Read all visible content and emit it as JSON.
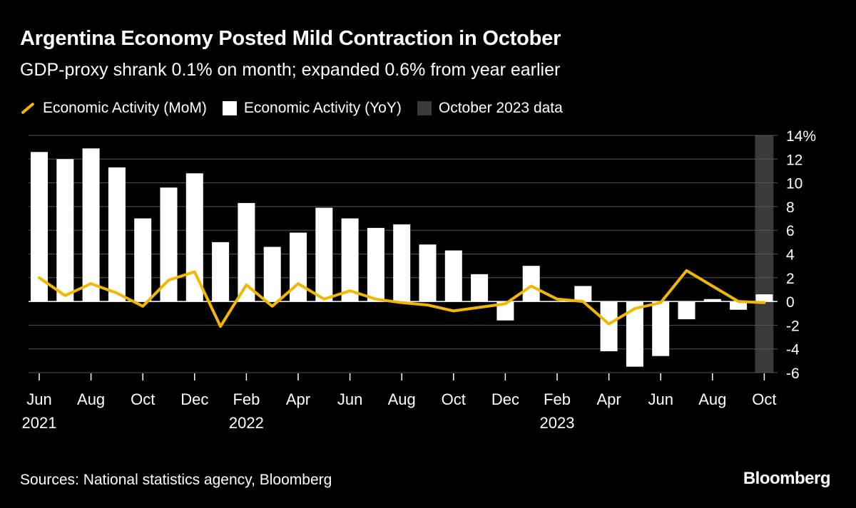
{
  "header": {
    "title": "Argentina Economy Posted Mild Contraction in October",
    "subtitle": "GDP-proxy shrank 0.1% on month; expanded 0.6% from year earlier"
  },
  "legend": {
    "mom_label": "Economic Activity (MoM)",
    "yoy_label": "Economic Activity (YoY)",
    "highlight_label": "October 2023 data"
  },
  "footer": {
    "source": "Sources: National statistics agency, Bloomberg",
    "brand": "Bloomberg"
  },
  "colors": {
    "background": "#000000",
    "mom_line": "#f2b705",
    "yoy_bar": "#ffffff",
    "highlight": "#3a3a3a",
    "grid": "#555555"
  },
  "chart_data": {
    "type": "bar",
    "title": "Argentina Economy Posted Mild Contraction in October",
    "subtitle": "GDP-proxy shrank 0.1% on month; expanded 0.6% from year earlier",
    "ylim": [
      -6,
      14
    ],
    "y_ticks": [
      -6,
      -4,
      -2,
      0,
      2,
      4,
      6,
      8,
      10,
      12,
      14
    ],
    "y_tick_labels": [
      "-6",
      "-4",
      "-2",
      "0",
      "2",
      "4",
      "6",
      "8",
      "10",
      "12",
      "14%"
    ],
    "grid": true,
    "legend_position": "top-left",
    "highlight_period": "2023-10",
    "x": [
      "2021-06",
      "2021-07",
      "2021-08",
      "2021-09",
      "2021-10",
      "2021-11",
      "2021-12",
      "2022-01",
      "2022-02",
      "2022-03",
      "2022-04",
      "2022-05",
      "2022-06",
      "2022-07",
      "2022-08",
      "2022-09",
      "2022-10",
      "2022-11",
      "2022-12",
      "2023-01",
      "2023-02",
      "2023-03",
      "2023-04",
      "2023-05",
      "2023-06",
      "2023-07",
      "2023-08",
      "2023-09",
      "2023-10"
    ],
    "x_tick_labels": [
      {
        "index": 0,
        "month": "Jun",
        "year": "2021"
      },
      {
        "index": 2,
        "month": "Aug",
        "year": ""
      },
      {
        "index": 4,
        "month": "Oct",
        "year": ""
      },
      {
        "index": 6,
        "month": "Dec",
        "year": ""
      },
      {
        "index": 8,
        "month": "Feb",
        "year": "2022"
      },
      {
        "index": 10,
        "month": "Apr",
        "year": ""
      },
      {
        "index": 12,
        "month": "Jun",
        "year": ""
      },
      {
        "index": 14,
        "month": "Aug",
        "year": ""
      },
      {
        "index": 16,
        "month": "Oct",
        "year": ""
      },
      {
        "index": 18,
        "month": "Dec",
        "year": ""
      },
      {
        "index": 20,
        "month": "Feb",
        "year": "2023"
      },
      {
        "index": 22,
        "month": "Apr",
        "year": ""
      },
      {
        "index": 24,
        "month": "Jun",
        "year": ""
      },
      {
        "index": 26,
        "month": "Aug",
        "year": ""
      },
      {
        "index": 28,
        "month": "Oct",
        "year": ""
      }
    ],
    "series": [
      {
        "name": "Economic Activity (YoY)",
        "type": "bar",
        "values": [
          12.6,
          12.0,
          12.9,
          11.3,
          7.0,
          9.6,
          10.8,
          5.0,
          8.3,
          4.6,
          5.8,
          7.9,
          7.0,
          6.2,
          6.5,
          4.8,
          4.3,
          2.3,
          -1.6,
          3.0,
          0.0,
          1.3,
          -4.2,
          -5.5,
          -4.6,
          -1.5,
          0.2,
          -0.7,
          0.6
        ]
      },
      {
        "name": "Economic Activity (MoM)",
        "type": "line",
        "values": [
          2.0,
          0.5,
          1.5,
          0.7,
          -0.4,
          1.8,
          2.5,
          -2.1,
          1.4,
          -0.4,
          1.5,
          0.2,
          0.9,
          0.2,
          -0.1,
          -0.3,
          -0.8,
          -0.5,
          -0.2,
          1.3,
          0.2,
          0.0,
          -1.9,
          -0.6,
          -0.1,
          2.6,
          1.3,
          0.0,
          -0.1
        ]
      }
    ]
  }
}
